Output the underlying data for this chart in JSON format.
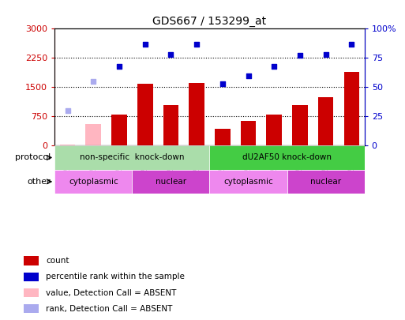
{
  "title": "GDS667 / 153299_at",
  "samples": [
    "GSM21848",
    "GSM21850",
    "GSM21852",
    "GSM21849",
    "GSM21851",
    "GSM21853",
    "GSM21854",
    "GSM21856",
    "GSM21858",
    "GSM21855",
    "GSM21857",
    "GSM21859"
  ],
  "bar_values": [
    30,
    560,
    800,
    1580,
    1050,
    1600,
    430,
    640,
    800,
    1050,
    1250,
    1900
  ],
  "bar_absent": [
    true,
    true,
    false,
    false,
    false,
    false,
    false,
    false,
    false,
    false,
    false,
    false
  ],
  "scatter_pct": [
    30,
    55,
    68,
    87,
    78,
    87,
    53,
    60,
    68,
    77,
    78,
    87
  ],
  "scatter_absent": [
    true,
    true,
    false,
    false,
    false,
    false,
    false,
    false,
    false,
    false,
    false,
    false
  ],
  "bar_color": "#cc0000",
  "bar_absent_color": "#ffb6c1",
  "scatter_color": "#0000cc",
  "scatter_absent_color": "#aaaaee",
  "ylim_left": [
    0,
    3000
  ],
  "ylim_right": [
    0,
    100
  ],
  "yticks_left": [
    0,
    750,
    1500,
    2250,
    3000
  ],
  "yticks_right": [
    0,
    25,
    50,
    75,
    100
  ],
  "ytick_labels_left": [
    "0",
    "750",
    "1500",
    "2250",
    "3000"
  ],
  "ytick_labels_right": [
    "0",
    "25",
    "50",
    "75",
    "100%"
  ],
  "protocol_groups": [
    {
      "label": "non-specific  knock-down",
      "start": 0,
      "end": 6,
      "color": "#aaddaa"
    },
    {
      "label": "dU2AF50 knock-down",
      "start": 6,
      "end": 12,
      "color": "#44cc44"
    }
  ],
  "other_groups": [
    {
      "label": "cytoplasmic",
      "start": 0,
      "end": 3,
      "color": "#ee88ee"
    },
    {
      "label": "nuclear",
      "start": 3,
      "end": 6,
      "color": "#cc44cc"
    },
    {
      "label": "cytoplasmic",
      "start": 6,
      "end": 9,
      "color": "#ee88ee"
    },
    {
      "label": "nuclear",
      "start": 9,
      "end": 12,
      "color": "#cc44cc"
    }
  ],
  "legend_items": [
    {
      "label": "count",
      "color": "#cc0000"
    },
    {
      "label": "percentile rank within the sample",
      "color": "#0000cc"
    },
    {
      "label": "value, Detection Call = ABSENT",
      "color": "#ffb6c1"
    },
    {
      "label": "rank, Detection Call = ABSENT",
      "color": "#aaaaee"
    }
  ],
  "background_color": "#ffffff",
  "protocol_label": "protocol",
  "other_label": "other",
  "figsize": [
    5.13,
    4.05
  ],
  "dpi": 100
}
